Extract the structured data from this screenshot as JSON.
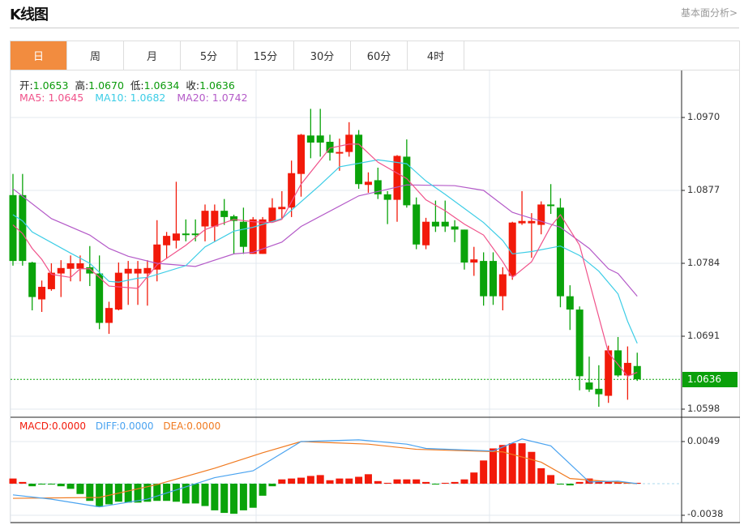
{
  "header": {
    "title": "K线图",
    "link": "基本面分析>"
  },
  "tabs": [
    {
      "label": "日",
      "active": true
    },
    {
      "label": "周"
    },
    {
      "label": "月"
    },
    {
      "label": "5分"
    },
    {
      "label": "15分"
    },
    {
      "label": "30分"
    },
    {
      "label": "60分"
    },
    {
      "label": "4时"
    }
  ],
  "ohlc_legend": {
    "open_label": "开:",
    "open": "1.0653",
    "high_label": "高:",
    "high": "1.0670",
    "low_label": "低:",
    "low": "1.0634",
    "close_label": "收:",
    "close": "1.0636"
  },
  "ma_legend": {
    "ma5": "MA5: 1.0645",
    "ma10": "MA10: 1.0682",
    "ma20": "MA20: 1.0742"
  },
  "macd_legend": {
    "macd": "MACD:0.0000",
    "diff": "DIFF:0.0000",
    "dea": "DEA:0.0000"
  },
  "colors": {
    "up": "#f21a0a",
    "down": "#0aa30a",
    "ma5": "#f0528a",
    "ma10": "#3dcde6",
    "ma20": "#b45ac8",
    "diff": "#4aa3f0",
    "dea": "#f07a20",
    "accent": "#f28c3f"
  },
  "chart_data": {
    "type": "candlestick",
    "price_axis": {
      "ticks": [
        "1.0970",
        "1.0877",
        "1.0784",
        "1.0691",
        "1.0598"
      ],
      "range": [
        1.0598,
        1.097
      ]
    },
    "current_price": "1.0636",
    "candles_ohlc": [
      [
        1.0871,
        1.0898,
        1.0781,
        1.0787
      ],
      [
        1.0871,
        1.0898,
        1.0781,
        1.0787
      ],
      [
        1.0785,
        1.0786,
        1.0724,
        1.0741
      ],
      [
        1.0738,
        1.0762,
        1.0722,
        1.0754
      ],
      [
        1.0751,
        1.0784,
        1.0749,
        1.0772
      ],
      [
        1.0771,
        1.0788,
        1.0741,
        1.0778
      ],
      [
        1.0777,
        1.0794,
        1.0761,
        1.0784
      ],
      [
        1.0777,
        1.0794,
        1.0761,
        1.0784
      ],
      [
        1.0779,
        1.0806,
        1.0755,
        1.0771
      ],
      [
        1.0771,
        1.0794,
        1.07,
        1.0708
      ],
      [
        1.0708,
        1.0735,
        1.0694,
        1.0727
      ],
      [
        1.0725,
        1.0785,
        1.0724,
        1.0772
      ],
      [
        1.0771,
        1.0787,
        1.0731,
        1.0777
      ],
      [
        1.0771,
        1.0787,
        1.0731,
        1.0777
      ],
      [
        1.0771,
        1.0788,
        1.073,
        1.0778
      ],
      [
        1.0776,
        1.0839,
        1.0761,
        1.0808
      ],
      [
        1.0807,
        1.0824,
        1.079,
        1.0819
      ],
      [
        1.0813,
        1.0888,
        1.0803,
        1.0822
      ],
      [
        1.0822,
        1.084,
        1.0812,
        1.082
      ],
      [
        1.0822,
        1.084,
        1.0812,
        1.082
      ],
      [
        1.0831,
        1.0859,
        1.0812,
        1.0851
      ],
      [
        1.0831,
        1.0859,
        1.0812,
        1.0851
      ],
      [
        1.0851,
        1.0866,
        1.0833,
        1.0843
      ],
      [
        1.0844,
        1.0846,
        1.0796,
        1.0838
      ],
      [
        1.0837,
        1.0855,
        1.0796,
        1.0805
      ],
      [
        1.0796,
        1.0843,
        1.0796,
        1.084
      ],
      [
        1.0796,
        1.0843,
        1.0796,
        1.084
      ],
      [
        1.0837,
        1.0867,
        1.0837,
        1.0855
      ],
      [
        1.0853,
        1.0876,
        1.0841,
        1.0856
      ],
      [
        1.0855,
        1.0915,
        1.0843,
        1.0899
      ],
      [
        1.0898,
        1.0949,
        1.0869,
        1.0948
      ],
      [
        1.0947,
        1.0981,
        1.0918,
        1.0938
      ],
      [
        1.0947,
        1.0981,
        1.092,
        1.0938
      ],
      [
        1.0939,
        1.0948,
        1.0915,
        1.0925
      ],
      [
        1.0924,
        1.0943,
        1.0902,
        1.0926
      ],
      [
        1.0926,
        1.0964,
        1.092,
        1.0948
      ],
      [
        1.0948,
        1.0954,
        1.0879,
        1.0885
      ],
      [
        1.0884,
        1.09,
        1.0874,
        1.0888
      ],
      [
        1.089,
        1.0906,
        1.0866,
        1.0872
      ],
      [
        1.0872,
        1.0876,
        1.0834,
        1.0865
      ],
      [
        1.0865,
        1.0922,
        1.0837,
        1.0921
      ],
      [
        1.092,
        1.0942,
        1.0855,
        1.0858
      ],
      [
        1.0859,
        1.0868,
        1.0802,
        1.0808
      ],
      [
        1.0807,
        1.0842,
        1.0802,
        1.0837
      ],
      [
        1.0837,
        1.0864,
        1.0824,
        1.0831
      ],
      [
        1.0837,
        1.0864,
        1.0824,
        1.0831
      ],
      [
        1.0831,
        1.0839,
        1.0811,
        1.0827
      ],
      [
        1.0827,
        1.0827,
        1.0776,
        1.0785
      ],
      [
        1.0785,
        1.0805,
        1.0768,
        1.0789
      ],
      [
        1.0787,
        1.0798,
        1.073,
        1.0742
      ],
      [
        1.0787,
        1.0798,
        1.0731,
        1.0742
      ],
      [
        1.0742,
        1.0779,
        1.0724,
        1.077
      ],
      [
        1.0768,
        1.0837,
        1.0763,
        1.0836
      ],
      [
        1.0835,
        1.0876,
        1.0833,
        1.0838
      ],
      [
        1.0835,
        1.0848,
        1.0791,
        1.0838
      ],
      [
        1.0833,
        1.0863,
        1.0821,
        1.0859
      ],
      [
        1.0859,
        1.0885,
        1.0847,
        1.0857
      ],
      [
        1.0855,
        1.0867,
        1.0728,
        1.0742
      ],
      [
        1.0742,
        1.0756,
        1.0699,
        1.0725
      ],
      [
        1.0725,
        1.0729,
        1.0622,
        1.064
      ],
      [
        1.0632,
        1.0665,
        1.062,
        1.0623
      ],
      [
        1.0624,
        1.0654,
        1.0601,
        1.0617
      ],
      [
        1.0615,
        1.0679,
        1.0606,
        1.0673
      ],
      [
        1.0673,
        1.069,
        1.0639,
        1.0641
      ],
      [
        1.0641,
        1.0678,
        1.061,
        1.0657
      ],
      [
        1.0653,
        1.067,
        1.0634,
        1.0636
      ]
    ],
    "ma5_points": [
      [
        0,
        1.0833
      ],
      [
        1,
        1.0822
      ],
      [
        2,
        1.0803
      ],
      [
        3,
        1.0789
      ],
      [
        4,
        1.077
      ],
      [
        6,
        1.0766
      ],
      [
        7,
        1.0777
      ],
      [
        8,
        1.0777
      ],
      [
        10,
        1.0755
      ],
      [
        13,
        1.0752
      ],
      [
        15,
        1.0782
      ],
      [
        18,
        1.0807
      ],
      [
        20,
        1.0827
      ],
      [
        23,
        1.084
      ],
      [
        25,
        1.0837
      ],
      [
        27,
        1.0836
      ],
      [
        28,
        1.084
      ],
      [
        30,
        1.0885
      ],
      [
        33,
        1.0931
      ],
      [
        35,
        1.0936
      ],
      [
        36,
        1.0936
      ],
      [
        38,
        1.0913
      ],
      [
        41,
        1.0892
      ],
      [
        43,
        1.0865
      ],
      [
        45,
        1.0851
      ],
      [
        47,
        1.0834
      ],
      [
        49,
        1.082
      ],
      [
        51,
        1.0786
      ],
      [
        52,
        1.0766
      ],
      [
        54,
        1.0786
      ],
      [
        56,
        1.0831
      ],
      [
        57,
        1.0846
      ],
      [
        59,
        1.0807
      ],
      [
        60,
        1.0761
      ],
      [
        62,
        1.067
      ],
      [
        64,
        1.064
      ],
      [
        65,
        1.0645
      ]
    ],
    "ma10_points": [
      [
        0,
        1.0846
      ],
      [
        1,
        1.0838
      ],
      [
        2,
        1.0824
      ],
      [
        6,
        1.0797
      ],
      [
        8,
        1.0784
      ],
      [
        10,
        1.0761
      ],
      [
        11,
        1.076
      ],
      [
        13,
        1.0765
      ],
      [
        14,
        1.0766
      ],
      [
        18,
        1.0781
      ],
      [
        20,
        1.0805
      ],
      [
        23,
        1.0825
      ],
      [
        25,
        1.083
      ],
      [
        28,
        1.0841
      ],
      [
        32,
        1.0884
      ],
      [
        34,
        1.0907
      ],
      [
        38,
        1.0916
      ],
      [
        41,
        1.0911
      ],
      [
        43,
        1.0889
      ],
      [
        45,
        1.0872
      ],
      [
        47,
        1.0854
      ],
      [
        49,
        1.0836
      ],
      [
        51,
        1.0813
      ],
      [
        52,
        1.0796
      ],
      [
        54,
        1.0799
      ],
      [
        57,
        1.0806
      ],
      [
        59,
        1.0794
      ],
      [
        61,
        1.0774
      ],
      [
        63,
        1.0745
      ],
      [
        64,
        1.071
      ],
      [
        65,
        1.0682
      ]
    ],
    "ma20_points": [
      [
        0,
        1.0879
      ],
      [
        4,
        1.0841
      ],
      [
        8,
        1.082
      ],
      [
        10,
        1.0803
      ],
      [
        12,
        1.0793
      ],
      [
        15,
        1.0784
      ],
      [
        19,
        1.078
      ],
      [
        23,
        1.0796
      ],
      [
        25,
        1.0798
      ],
      [
        28,
        1.0811
      ],
      [
        30,
        1.0831
      ],
      [
        36,
        1.087
      ],
      [
        41,
        1.0884
      ],
      [
        46,
        1.0883
      ],
      [
        49,
        1.0877
      ],
      [
        52,
        1.0849
      ],
      [
        57,
        1.083
      ],
      [
        60,
        1.0803
      ],
      [
        62,
        1.0777
      ],
      [
        63,
        1.0771
      ],
      [
        65,
        1.0742
      ]
    ],
    "macd_axis": {
      "ticks": [
        "0.0049",
        "-0.0038"
      ]
    },
    "macd_hist": [
      0.0006,
      0.0002,
      -0.0003,
      -0.0001,
      -0.0001,
      -0.0003,
      -0.0006,
      -0.0012,
      -0.002,
      -0.0027,
      -0.0024,
      -0.0021,
      -0.0022,
      -0.0022,
      -0.0021,
      -0.002,
      -0.002,
      -0.0021,
      -0.0023,
      -0.0023,
      -0.0026,
      -0.0031,
      -0.0034,
      -0.0035,
      -0.0031,
      -0.0028,
      -0.0014,
      -0.0003,
      0.0005,
      0.0006,
      0.0007,
      0.0009,
      0.001,
      0.0004,
      0.0006,
      0.0006,
      0.0008,
      0.0011,
      0.0003,
      0.0001,
      0.0005,
      0.0005,
      0.0005,
      0.0002,
      -0.0001,
      0.0001,
      0.0002,
      0.0005,
      0.0013,
      0.0027,
      0.0041,
      0.0045,
      0.0047,
      0.0047,
      0.0037,
      0.0018,
      0.001,
      -0.0001,
      -0.0002,
      0.0002,
      0.0006,
      0.0003,
      0.0003,
      0.0002,
      0.0001,
      0.0001
    ],
    "diff_points": [
      [
        0,
        -0.0013
      ],
      [
        4,
        -0.0018
      ],
      [
        9,
        -0.0027
      ],
      [
        14,
        -0.0018
      ],
      [
        21,
        0.0007
      ],
      [
        25,
        0.0015
      ],
      [
        30,
        0.0049
      ],
      [
        36,
        0.0051
      ],
      [
        41,
        0.0046
      ],
      [
        43,
        0.0041
      ],
      [
        50,
        0.0038
      ],
      [
        53,
        0.0052
      ],
      [
        56,
        0.0044
      ],
      [
        60,
        0.0002
      ],
      [
        63,
        0.0003
      ],
      [
        65,
        0.0
      ]
    ],
    "dea_points": [
      [
        0,
        -0.0017
      ],
      [
        9,
        -0.0016
      ],
      [
        15,
        -0.0001
      ],
      [
        21,
        0.0018
      ],
      [
        26,
        0.0036
      ],
      [
        30,
        0.0049
      ],
      [
        37,
        0.0046
      ],
      [
        42,
        0.004
      ],
      [
        51,
        0.0037
      ],
      [
        55,
        0.0025
      ],
      [
        58,
        0.0006
      ],
      [
        65,
        0.0
      ]
    ]
  }
}
